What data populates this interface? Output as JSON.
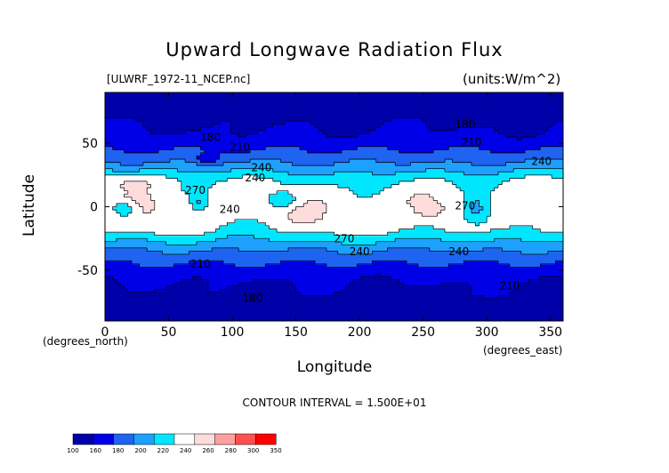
{
  "chart_data": {
    "type": "heatmap",
    "title": "Upward Longwave Radiation Flux",
    "subtitle_left": "[ULWRF_1972-11_NCEP.nc]",
    "subtitle_right": "(units:W/m^2)",
    "xlabel": "Longitude",
    "ylabel": "Latitude",
    "xunits": "(degrees_north)",
    "yunits": "(degrees_east)",
    "xlim": [
      0,
      360
    ],
    "ylim": [
      -90,
      90
    ],
    "xticks": [
      0,
      50,
      100,
      150,
      200,
      250,
      300,
      350
    ],
    "yticks": [
      -50,
      0,
      50
    ],
    "contour_interval": "CONTOUR INTERVAL = 1.500E+01",
    "contour_labels": [
      {
        "text": "180",
        "x": 75,
        "y": 52
      },
      {
        "text": "210",
        "x": 98,
        "y": 44
      },
      {
        "text": "240",
        "x": 115,
        "y": 28
      },
      {
        "text": "240",
        "x": 110,
        "y": 20
      },
      {
        "text": "270",
        "x": 63,
        "y": 10
      },
      {
        "text": "240",
        "x": 90,
        "y": -5
      },
      {
        "text": "270",
        "x": 180,
        "y": -28
      },
      {
        "text": "240",
        "x": 192,
        "y": -38
      },
      {
        "text": "240",
        "x": 270,
        "y": -38
      },
      {
        "text": "210",
        "x": 67,
        "y": -48
      },
      {
        "text": "180",
        "x": 108,
        "y": -75
      },
      {
        "text": "210",
        "x": 310,
        "y": -65
      },
      {
        "text": "180",
        "x": 275,
        "y": 62
      },
      {
        "text": "210",
        "x": 280,
        "y": 48
      },
      {
        "text": "240",
        "x": 335,
        "y": 33
      },
      {
        "text": "270",
        "x": 275,
        "y": -2
      }
    ],
    "legend": {
      "levels": [
        "100",
        "160",
        "180",
        "200",
        "220",
        "240",
        "260",
        "280",
        "300",
        "350"
      ],
      "colors": [
        "#0000a8",
        "#0000e6",
        "#1e64f0",
        "#1ea0ff",
        "#00e6ff",
        "#ffffff",
        "#ffdcdc",
        "#ffa0a0",
        "#ff5050",
        "#ff0000"
      ]
    }
  }
}
